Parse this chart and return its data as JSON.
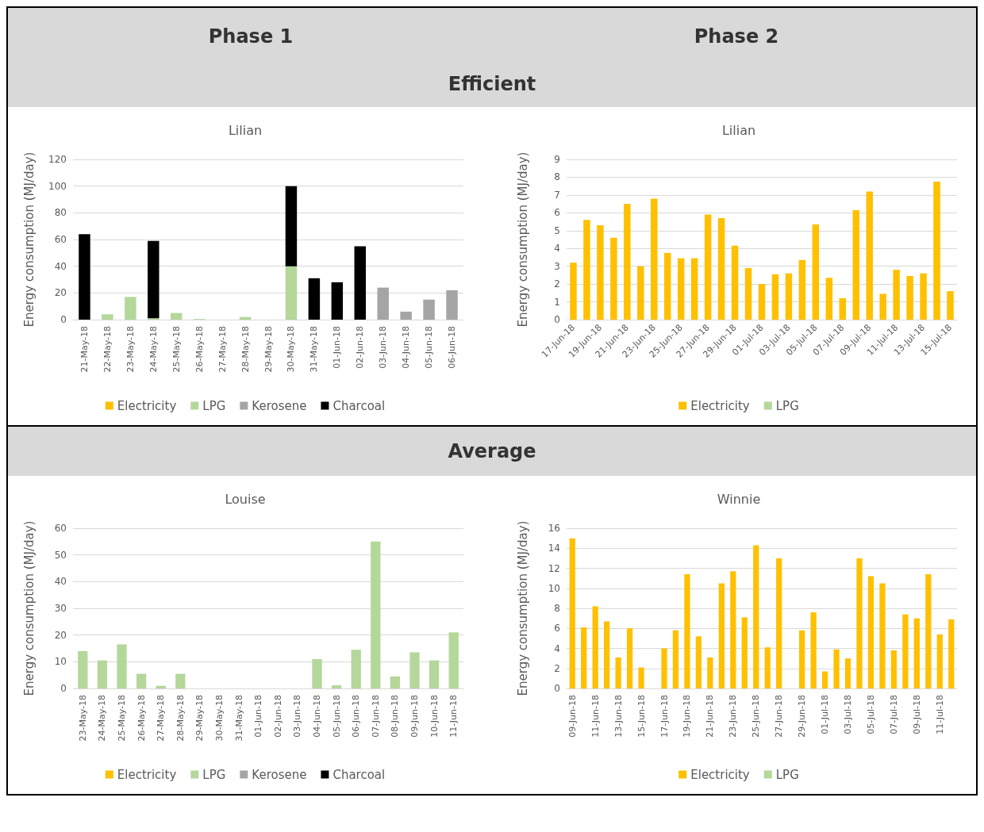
{
  "chart_data": [
    {
      "type": "bar",
      "title": "Lilian",
      "annotations": [
        "Phase 1",
        "Efficient"
      ],
      "ylabel": "Energy consumption (MJ/day)",
      "stacked": true,
      "grid": "y",
      "legend": "bottom",
      "ylim": [
        0,
        120
      ],
      "yticks": [
        0,
        20,
        40,
        60,
        80,
        100,
        120
      ],
      "categories": [
        "21-May-18",
        "22-May-18",
        "23-May-18",
        "24-May-18",
        "25-May-18",
        "26-May-18",
        "27-May-18",
        "28-May-18",
        "29-May-18",
        "30-May-18",
        "31-May-18",
        "01-Jun-18",
        "02-Jun-18",
        "03-Jun-18",
        "04-Jun-18",
        "05-Jun-18",
        "06-Jun-18"
      ],
      "series": [
        {
          "name": "Electricity",
          "color": "#ffc000",
          "values": [
            0,
            0,
            0,
            0,
            0,
            0,
            0,
            0,
            0,
            0,
            0,
            0,
            0,
            0,
            0,
            0,
            0
          ]
        },
        {
          "name": "LPG",
          "color": "#b4d79a",
          "values": [
            0,
            4,
            17,
            1,
            5,
            0.5,
            0,
            2,
            0,
            40,
            0,
            0,
            0,
            0,
            0,
            0,
            0
          ]
        },
        {
          "name": "Kerosene",
          "color": "#a5a5a5",
          "values": [
            0,
            0,
            0,
            0,
            0,
            0,
            0,
            0,
            0,
            0,
            0,
            0,
            0,
            24,
            6,
            15,
            22
          ]
        },
        {
          "name": "Charcoal",
          "color": "#000000",
          "values": [
            64,
            0,
            0,
            58,
            0,
            0,
            0,
            0,
            0,
            60,
            31,
            28,
            55,
            0,
            0,
            0,
            0
          ]
        }
      ]
    },
    {
      "type": "bar",
      "title": "Lilian",
      "annotations": [
        "Phase 2"
      ],
      "ylabel": "Energy consumption (MJ/day)",
      "stacked": true,
      "grid": "y",
      "legend": "bottom",
      "ylim": [
        0,
        9
      ],
      "yticks": [
        0,
        1,
        2,
        3,
        4,
        5,
        6,
        7,
        8,
        9
      ],
      "categories": [
        "17-Jun-18",
        null,
        "19-Jun-18",
        null,
        "21-Jun-18",
        null,
        "23-Jun-18",
        null,
        "25-Jun-18",
        null,
        "27-Jun-18",
        null,
        "29-Jun-18",
        null,
        "01-Jul-18",
        null,
        "03-Jul-18",
        null,
        "05-Jul-18",
        null,
        "07-Jul-18",
        null,
        "09-Jul-18",
        null,
        "11-Jul-18",
        null,
        "13-Jul-18",
        null,
        "15-Jul-18"
      ],
      "series": [
        {
          "name": "Electricity",
          "color": "#ffc000",
          "values": [
            3.2,
            5.6,
            5.3,
            4.6,
            6.5,
            3.0,
            6.8,
            3.75,
            3.45,
            3.45,
            5.9,
            5.7,
            4.15,
            2.9,
            2.0,
            2.55,
            2.6,
            3.35,
            5.35,
            2.35,
            1.2,
            6.15,
            7.2,
            1.45,
            2.8,
            2.45,
            2.6,
            7.75,
            1.6
          ]
        },
        {
          "name": "LPG",
          "color": "#b4d79a",
          "values": [
            0,
            0,
            0,
            0,
            0,
            0,
            0,
            0,
            0,
            0,
            0,
            0,
            0,
            0,
            0,
            0,
            0,
            0,
            0,
            0,
            0,
            0,
            0,
            0,
            0,
            0,
            0,
            0,
            0
          ]
        }
      ]
    },
    {
      "type": "bar",
      "title": "Louise",
      "annotations": [
        "Average"
      ],
      "ylabel": "Energy consumption (MJ/day)",
      "stacked": true,
      "grid": "y",
      "legend": "bottom",
      "ylim": [
        0,
        60
      ],
      "yticks": [
        0,
        10,
        20,
        30,
        40,
        50,
        60
      ],
      "categories": [
        "23-May-18",
        "24-May-18",
        "25-May-18",
        "26-May-18",
        "27-May-18",
        "28-May-18",
        "29-May-18",
        "30-May-18",
        "31-May-18",
        "01-Jun-18",
        "02-Jun-18",
        "03-Jun-18",
        "04-Jun-18",
        "05-Jun-18",
        "06-Jun-18",
        "07-Jun-18",
        "08-Jun-18",
        "09-Jun-18",
        "10-Jun-18",
        "11-Jun-18"
      ],
      "series": [
        {
          "name": "Electricity",
          "color": "#ffc000",
          "values": [
            0,
            0,
            0,
            0,
            0,
            0,
            0,
            0,
            0,
            0,
            0,
            0,
            0,
            0,
            0,
            0,
            0,
            0,
            0,
            0
          ]
        },
        {
          "name": "LPG",
          "color": "#b4d79a",
          "values": [
            14,
            10.5,
            16.5,
            5.5,
            1,
            5.5,
            0,
            0,
            0,
            0,
            0,
            0,
            11,
            1.2,
            14.5,
            55,
            4.5,
            13.5,
            10.5,
            21
          ]
        },
        {
          "name": "Kerosene",
          "color": "#a5a5a5",
          "values": [
            0,
            0,
            0,
            0,
            0,
            0,
            0,
            0,
            0,
            0,
            0,
            0,
            0,
            0,
            0,
            0,
            0,
            0,
            0,
            0
          ]
        },
        {
          "name": "Charcoal",
          "color": "#000000",
          "values": [
            0,
            0,
            0,
            0,
            0,
            0,
            0,
            0,
            0,
            0,
            0,
            0,
            0,
            0,
            0,
            0,
            0,
            0,
            0,
            0
          ]
        }
      ]
    },
    {
      "type": "bar",
      "title": "Winnie",
      "ylabel": "Energy consumption (MJ/day)",
      "stacked": true,
      "grid": "y",
      "legend": "bottom",
      "ylim": [
        0,
        16
      ],
      "yticks": [
        0,
        2,
        4,
        6,
        8,
        10,
        12,
        14,
        16
      ],
      "categories": [
        "09-Jun-18",
        null,
        "11-Jun-18",
        null,
        "13-Jun-18",
        null,
        "15-Jun-18",
        null,
        "17-Jun-18",
        null,
        "19-Jun-18",
        null,
        "21-Jun-18",
        null,
        "23-Jun-18",
        null,
        "25-Jun-18",
        null,
        "27-Jun-18",
        null,
        "29-Jun-18",
        null,
        "01-Jul-18",
        null,
        "03-Jul-18",
        null,
        "05-Jul-18",
        null,
        "07-Jul-18",
        null,
        "09-Jul-18",
        null,
        "11-Jul-18",
        null
      ],
      "series": [
        {
          "name": "Electricity",
          "color": "#ffc000",
          "values": [
            15,
            6.1,
            8.2,
            6.7,
            3.1,
            6.0,
            2.1,
            0,
            4.0,
            5.8,
            11.4,
            5.2,
            3.1,
            10.5,
            11.7,
            7.1,
            14.3,
            4.1,
            13.0,
            0,
            5.8,
            7.6,
            1.7,
            3.9,
            3.0,
            13.0,
            11.2,
            10.5,
            3.8,
            7.4,
            7.0,
            11.4,
            5.4,
            6.9
          ]
        },
        {
          "name": "LPG",
          "color": "#b4d79a",
          "values": [
            0,
            0,
            0,
            0,
            0,
            0,
            0,
            0,
            0,
            0,
            0,
            0,
            0,
            0,
            0,
            0,
            0,
            0,
            0,
            0,
            0,
            0,
            0,
            0,
            0,
            0,
            0,
            0,
            0,
            0,
            0,
            0,
            0,
            0
          ]
        }
      ]
    }
  ]
}
